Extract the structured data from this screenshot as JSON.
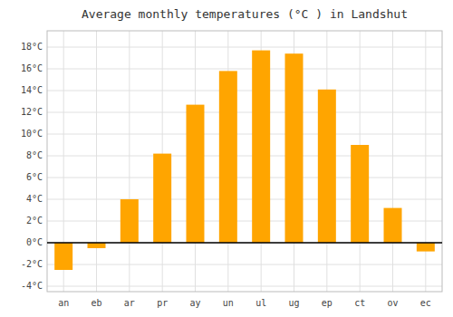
{
  "chart_data": {
    "type": "bar",
    "title": "Average monthly temperatures (°C ) in Landshut",
    "categories": [
      "an",
      "eb",
      "ar",
      "pr",
      "ay",
      "un",
      "ul",
      "ug",
      "ep",
      "ct",
      "ov",
      "ec"
    ],
    "values": [
      -2.5,
      -0.5,
      4.0,
      8.2,
      12.7,
      15.8,
      17.7,
      17.4,
      14.1,
      9.0,
      3.2,
      -0.8
    ],
    "color": "#FFA500",
    "ylim": [
      -4.5,
      19.5
    ],
    "yticks": [
      {
        "value": -4,
        "label": "-4°C"
      },
      {
        "value": -2,
        "label": "-2°C"
      },
      {
        "value": 0,
        "label": "0°C"
      },
      {
        "value": 2,
        "label": "2°C"
      },
      {
        "value": 4,
        "label": "4°C"
      },
      {
        "value": 6,
        "label": "6°C"
      },
      {
        "value": 8,
        "label": "8°C"
      },
      {
        "value": 10,
        "label": "10°C"
      },
      {
        "value": 12,
        "label": "12°C"
      },
      {
        "value": 14,
        "label": "14°C"
      },
      {
        "value": 16,
        "label": "16°C"
      },
      {
        "value": 18,
        "label": "18°C"
      }
    ],
    "grid": true
  }
}
